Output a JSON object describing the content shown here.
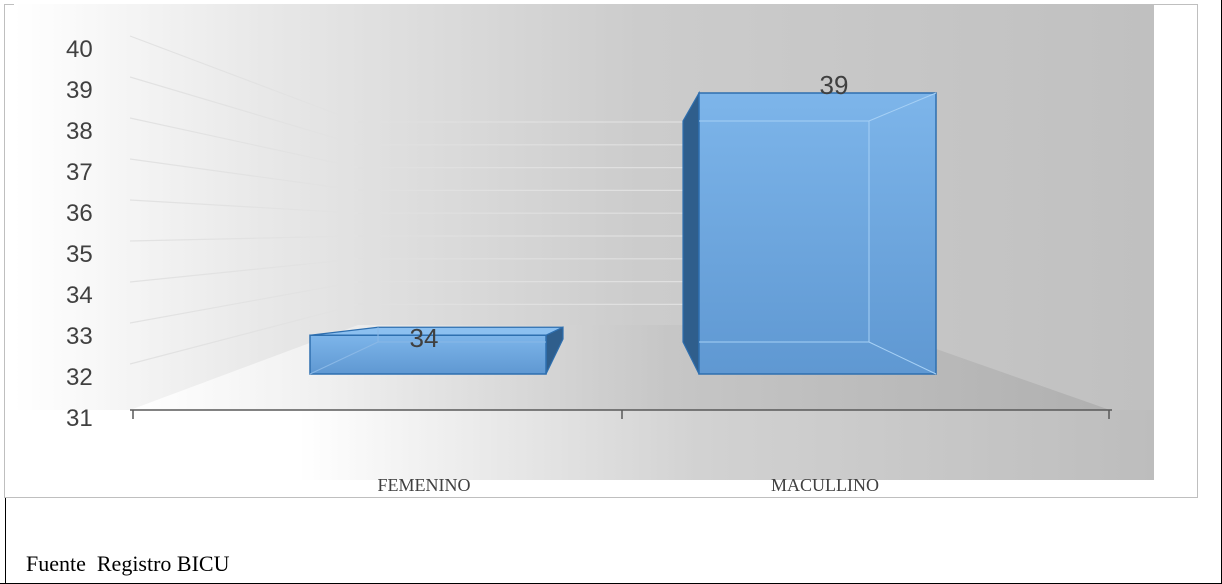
{
  "chart_data": {
    "type": "bar",
    "three_d": true,
    "categories": [
      "FEMENINO",
      "MACULLINO"
    ],
    "values": [
      34,
      39
    ],
    "data_labels": [
      "34",
      "39"
    ],
    "y_ticks": [
      "40",
      "39",
      "38",
      "37",
      "36",
      "35",
      "34",
      "33",
      "32",
      "31"
    ],
    "ylim": [
      31,
      40
    ],
    "grid": true,
    "legend": "none",
    "colors": {
      "bar_front": "#6fa8e0",
      "bar_side": "#2f5e8c",
      "bar_top": "#8cc0f0",
      "bar_edge": "#2e6faf",
      "wall": "#c4c4c4",
      "floor": "#b2b2b2"
    }
  },
  "source": {
    "text": "Fuente  Registro BICU"
  }
}
